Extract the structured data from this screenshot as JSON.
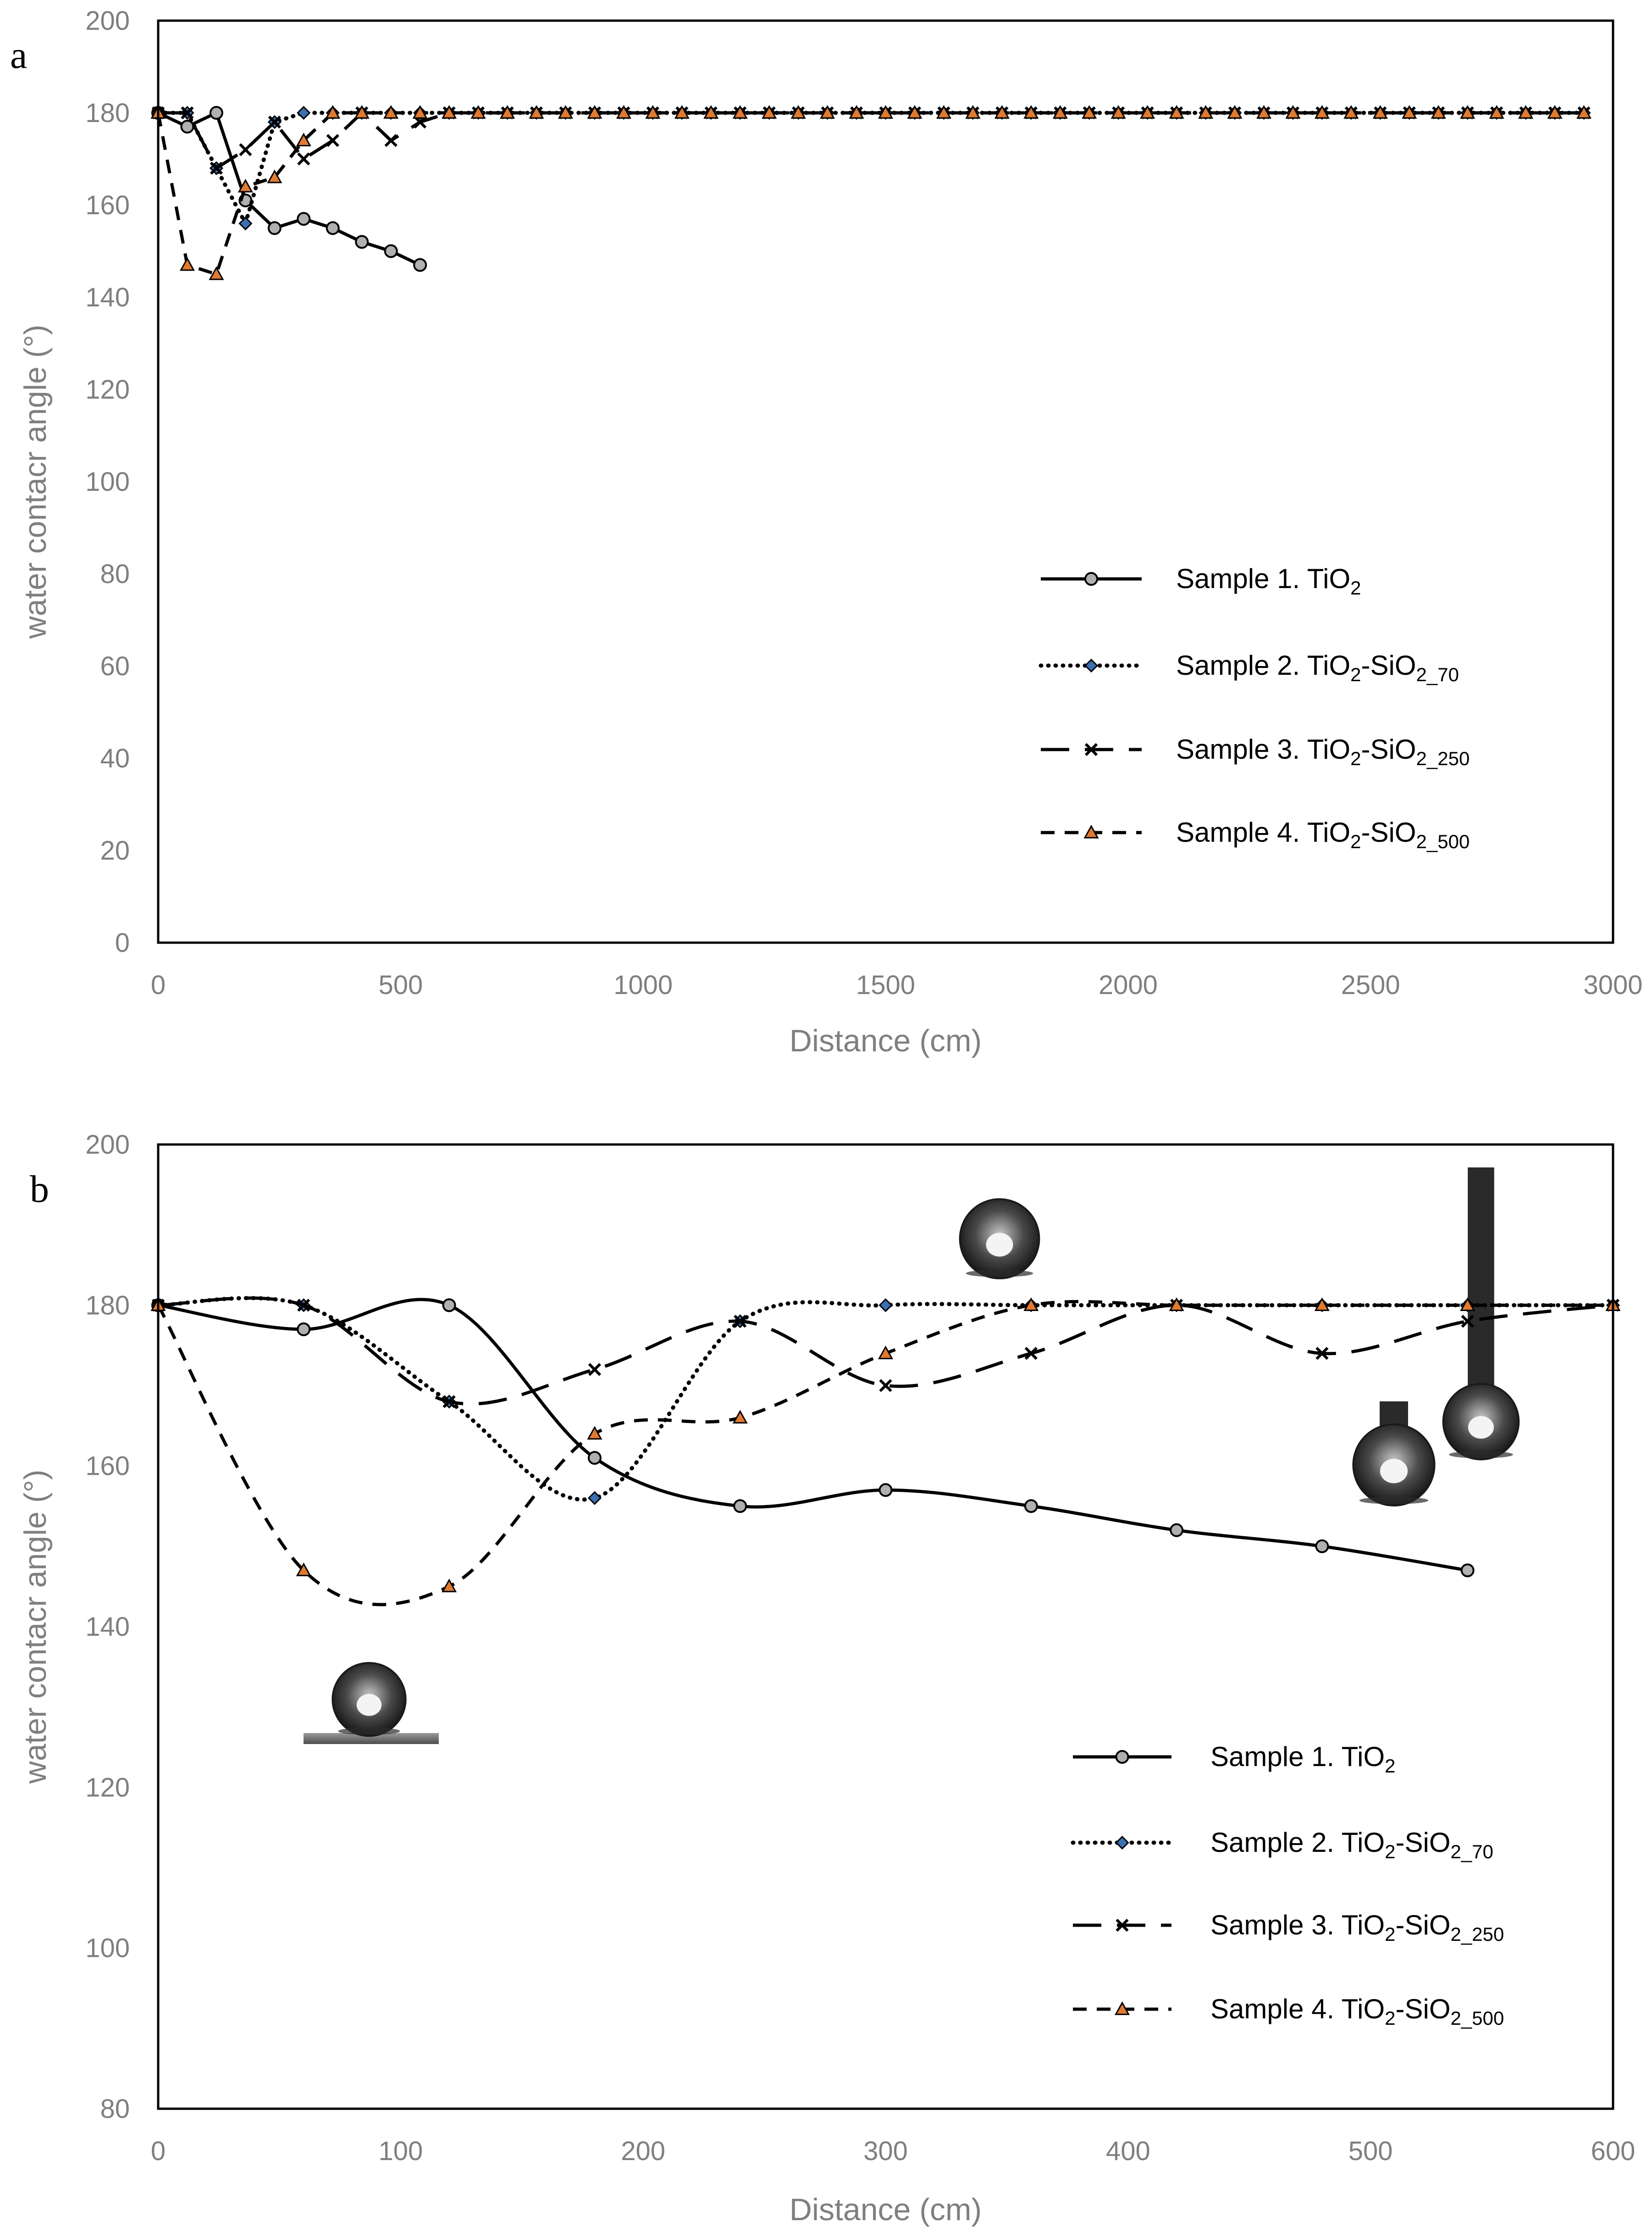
{
  "chart_data": [
    {
      "panel_label": "a",
      "type": "line",
      "xlabel": "Distance (cm)",
      "ylabel": "water contacr angle (°)",
      "xlim": [
        0,
        3000
      ],
      "ylim": [
        0,
        200
      ],
      "xticks": [
        0,
        500,
        1000,
        1500,
        2000,
        2500,
        3000
      ],
      "yticks": [
        0,
        20,
        40,
        60,
        80,
        100,
        120,
        140,
        160,
        180,
        200
      ],
      "smooth": false,
      "legend_position": "lower-right",
      "series": [
        {
          "name": "Sample 1. TiO",
          "sub1": "2",
          "mid": "",
          "sub2": "",
          "style": "solid",
          "marker": "circle",
          "x": [
            0,
            60,
            120,
            180,
            240,
            300,
            360,
            420,
            480,
            540
          ],
          "y": [
            180,
            177,
            180,
            161,
            155,
            157,
            155,
            152,
            150,
            147
          ]
        },
        {
          "name": "Sample 2. TiO",
          "sub1": "2",
          "mid": "-SiO",
          "sub2": "2_70",
          "style": "dotted",
          "marker": "diamond",
          "x": [
            0,
            60,
            120,
            180,
            240,
            300,
            360,
            420,
            480,
            540,
            600,
            660,
            720,
            780,
            840,
            900,
            960,
            1020,
            1080,
            1140,
            1200,
            1260,
            1320,
            1380,
            1440,
            1500,
            1560,
            1620,
            1680,
            1740,
            1800,
            1860,
            1920,
            1980,
            2040,
            2100,
            2160,
            2220,
            2280,
            2340,
            2400,
            2460,
            2520,
            2580,
            2640,
            2700,
            2760,
            2820,
            2880,
            2940
          ],
          "y": [
            180,
            180,
            168,
            156,
            178,
            180,
            180,
            180,
            180,
            180,
            180,
            180,
            180,
            180,
            180,
            180,
            180,
            180,
            180,
            180,
            180,
            180,
            180,
            180,
            180,
            180,
            180,
            180,
            180,
            180,
            180,
            180,
            180,
            180,
            180,
            180,
            180,
            180,
            180,
            180,
            180,
            180,
            180,
            180,
            180,
            180,
            180,
            180,
            180,
            180
          ]
        },
        {
          "name": "Sample 3. TiO",
          "sub1": "2",
          "mid": "-SiO",
          "sub2": "2_250",
          "style": "longdash",
          "marker": "x",
          "x": [
            0,
            60,
            120,
            180,
            240,
            300,
            360,
            420,
            480,
            540,
            600,
            660,
            720,
            780,
            840,
            900,
            960,
            1020,
            1080,
            1140,
            1200,
            1260,
            1320,
            1380,
            1440,
            1500,
            1560,
            1620,
            1680,
            1740,
            1800,
            1860,
            1920,
            1980,
            2040,
            2100,
            2160,
            2220,
            2280,
            2340,
            2400,
            2460,
            2520,
            2580,
            2640,
            2700,
            2760,
            2820,
            2880,
            2940
          ],
          "y": [
            180,
            180,
            168,
            172,
            178,
            170,
            174,
            180,
            174,
            178,
            180,
            180,
            180,
            180,
            180,
            180,
            180,
            180,
            180,
            180,
            180,
            180,
            180,
            180,
            180,
            180,
            180,
            180,
            180,
            180,
            180,
            180,
            180,
            180,
            180,
            180,
            180,
            180,
            180,
            180,
            180,
            180,
            180,
            180,
            180,
            180,
            180,
            180,
            180,
            180
          ]
        },
        {
          "name": "Sample 4. TiO",
          "sub1": "2",
          "mid": "-SiO",
          "sub2": "2_500",
          "style": "dashed",
          "marker": "triangle",
          "x": [
            0,
            60,
            120,
            180,
            240,
            300,
            360,
            420,
            480,
            540,
            600,
            660,
            720,
            780,
            840,
            900,
            960,
            1020,
            1080,
            1140,
            1200,
            1260,
            1320,
            1380,
            1440,
            1500,
            1560,
            1620,
            1680,
            1740,
            1800,
            1860,
            1920,
            1980,
            2040,
            2100,
            2160,
            2220,
            2280,
            2340,
            2400,
            2460,
            2520,
            2580,
            2640,
            2700,
            2760,
            2820,
            2880,
            2940
          ],
          "y": [
            180,
            147,
            145,
            164,
            166,
            174,
            180,
            180,
            180,
            180,
            180,
            180,
            180,
            180,
            180,
            180,
            180,
            180,
            180,
            180,
            180,
            180,
            180,
            180,
            180,
            180,
            180,
            180,
            180,
            180,
            180,
            180,
            180,
            180,
            180,
            180,
            180,
            180,
            180,
            180,
            180,
            180,
            180,
            180,
            180,
            180,
            180,
            180,
            180,
            180
          ]
        }
      ]
    },
    {
      "panel_label": "b",
      "type": "line",
      "xlabel": "Distance (cm)",
      "ylabel": "water contacr angle (°)",
      "xlim": [
        0,
        600
      ],
      "ylim": [
        80,
        200
      ],
      "xticks": [
        0,
        100,
        200,
        300,
        400,
        500,
        600
      ],
      "yticks": [
        80,
        100,
        120,
        140,
        160,
        180,
        200
      ],
      "smooth": true,
      "legend_position": "lower-right",
      "series": [
        {
          "name": "Sample 1. TiO",
          "sub1": "2",
          "mid": "",
          "sub2": "",
          "style": "solid",
          "marker": "circle",
          "x": [
            0,
            60,
            120,
            180,
            240,
            300,
            360,
            420,
            480,
            540
          ],
          "y": [
            180,
            177,
            180,
            161,
            155,
            157,
            155,
            152,
            150,
            147
          ]
        },
        {
          "name": "Sample 2. TiO",
          "sub1": "2",
          "mid": "-SiO",
          "sub2": "2_70",
          "style": "dotted",
          "marker": "diamond",
          "x": [
            0,
            60,
            120,
            180,
            240,
            300,
            360,
            420,
            480,
            540,
            600
          ],
          "y": [
            180,
            180,
            168,
            156,
            178,
            180,
            180,
            180,
            180,
            180,
            180
          ]
        },
        {
          "name": "Sample 3. TiO",
          "sub1": "2",
          "mid": "-SiO",
          "sub2": "2_250",
          "style": "longdash",
          "marker": "x",
          "x": [
            0,
            60,
            120,
            180,
            240,
            300,
            360,
            420,
            480,
            540,
            600
          ],
          "y": [
            180,
            180,
            168,
            172,
            178,
            170,
            174,
            180,
            174,
            178,
            180
          ]
        },
        {
          "name": "Sample 4. TiO",
          "sub1": "2",
          "mid": "-SiO",
          "sub2": "2_500",
          "style": "dashed",
          "marker": "triangle",
          "x": [
            0,
            60,
            120,
            180,
            240,
            300,
            360,
            420,
            480,
            540,
            600
          ],
          "y": [
            180,
            147,
            145,
            164,
            166,
            174,
            180,
            180,
            180,
            180,
            180
          ]
        }
      ]
    }
  ],
  "colors": {
    "line": "#000000",
    "marker_circle": "#b0b0b0",
    "marker_diamond": "#3a6fb0",
    "marker_triangle": "#e07a30",
    "axis_text": "#7f7f7f",
    "droplet": "#3a3a3a",
    "substrate": "#6e6e6e"
  }
}
